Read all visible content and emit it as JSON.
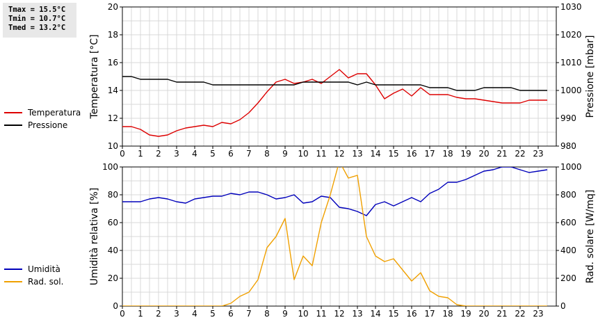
{
  "stats": {
    "tmax": "Tmax = 15.5°C",
    "tmin": "Tmin = 10.7°C",
    "tmed": "Tmed = 13.2°C"
  },
  "colors": {
    "temperatura": "#dd0000",
    "pressione": "#000000",
    "umidita": "#0000bb",
    "radiazione": "#f0a000"
  },
  "chart_data": [
    {
      "type": "line",
      "xlim": [
        0,
        24
      ],
      "xticks": [
        "0",
        "1",
        "2",
        "3",
        "4",
        "5",
        "6",
        "7",
        "8",
        "9",
        "10",
        "11",
        "12",
        "13",
        "14",
        "15",
        "16",
        "17",
        "18",
        "19",
        "20",
        "21",
        "22",
        "23"
      ],
      "ylabel_left": "Temperatura [°C]",
      "ylabel_right": "Pressione [mbar]",
      "ylim_left": [
        10,
        20
      ],
      "yticks_left": [
        "10",
        "12",
        "14",
        "16",
        "18",
        "20"
      ],
      "ylim_right": [
        980,
        1030
      ],
      "yticks_right": [
        "980",
        "990",
        "1000",
        "1010",
        "1020",
        "1030"
      ],
      "grid": true,
      "legend_placement": "left",
      "series": [
        {
          "name": "Temperatura",
          "axis": "left",
          "x": [
            0,
            0.5,
            1,
            1.5,
            2,
            2.5,
            3,
            3.5,
            4,
            4.5,
            5,
            5.5,
            6,
            6.5,
            7,
            7.5,
            8,
            8.5,
            9,
            9.5,
            10,
            10.5,
            11,
            11.5,
            12,
            12.5,
            13,
            13.5,
            14,
            14.5,
            15,
            15.5,
            16,
            16.5,
            17,
            17.5,
            18,
            18.5,
            19,
            19.5,
            20,
            20.5,
            21,
            21.5,
            22,
            22.5,
            23,
            23.5
          ],
          "y": [
            11.4,
            11.4,
            11.2,
            10.8,
            10.7,
            10.8,
            11.1,
            11.3,
            11.4,
            11.5,
            11.4,
            11.7,
            11.6,
            11.9,
            12.4,
            13.1,
            13.9,
            14.6,
            14.8,
            14.5,
            14.6,
            14.8,
            14.5,
            15.0,
            15.5,
            14.9,
            15.2,
            15.2,
            14.4,
            13.4,
            13.8,
            14.1,
            13.6,
            14.2,
            13.7,
            13.7,
            13.7,
            13.5,
            13.4,
            13.4,
            13.3,
            13.2,
            13.1,
            13.1,
            13.1,
            13.3,
            13.3,
            13.3
          ]
        },
        {
          "name": "Pressione",
          "axis": "right",
          "x": [
            0,
            0.5,
            1,
            1.5,
            2,
            2.5,
            3,
            3.5,
            4,
            4.5,
            5,
            5.5,
            6,
            6.5,
            7,
            7.5,
            8,
            8.5,
            9,
            9.5,
            10,
            10.5,
            11,
            11.5,
            12,
            12.5,
            13,
            13.5,
            14,
            14.5,
            15,
            15.5,
            16,
            16.5,
            17,
            17.5,
            18,
            18.5,
            19,
            19.5,
            20,
            20.5,
            21,
            21.5,
            22,
            22.5,
            23,
            23.5
          ],
          "y": [
            1005,
            1005,
            1004,
            1004,
            1004,
            1004,
            1003,
            1003,
            1003,
            1003,
            1002,
            1002,
            1002,
            1002,
            1002,
            1002,
            1002,
            1002,
            1002,
            1002,
            1003,
            1003,
            1003,
            1003,
            1003,
            1003,
            1002,
            1003,
            1002,
            1002,
            1002,
            1002,
            1002,
            1002,
            1001,
            1001,
            1001,
            1000,
            1000,
            1000,
            1001,
            1001,
            1001,
            1001,
            1000,
            1000,
            1000,
            1000
          ]
        }
      ]
    },
    {
      "type": "line",
      "xlim": [
        0,
        24
      ],
      "xticks": [
        "0",
        "1",
        "2",
        "3",
        "4",
        "5",
        "6",
        "7",
        "8",
        "9",
        "10",
        "11",
        "12",
        "13",
        "14",
        "15",
        "16",
        "17",
        "18",
        "19",
        "20",
        "21",
        "22",
        "23"
      ],
      "ylabel_left": "Umidità relativa [%]",
      "ylabel_right": "Rad. solare [W/mq]",
      "ylim_left": [
        0,
        100
      ],
      "yticks_left": [
        "0",
        "20",
        "40",
        "60",
        "80",
        "100"
      ],
      "ylim_right": [
        0,
        1000
      ],
      "yticks_right": [
        "0",
        "200",
        "400",
        "600",
        "800",
        "1000"
      ],
      "grid": true,
      "legend_placement": "left",
      "series": [
        {
          "name": "Umidità",
          "axis": "left",
          "x": [
            0,
            0.5,
            1,
            1.5,
            2,
            2.5,
            3,
            3.5,
            4,
            4.5,
            5,
            5.5,
            6,
            6.5,
            7,
            7.5,
            8,
            8.5,
            9,
            9.5,
            10,
            10.5,
            11,
            11.5,
            12,
            12.5,
            13,
            13.5,
            14,
            14.5,
            15,
            15.5,
            16,
            16.5,
            17,
            17.5,
            18,
            18.5,
            19,
            19.5,
            20,
            20.5,
            21,
            21.5,
            22,
            22.5,
            23,
            23.5
          ],
          "y": [
            75,
            75,
            75,
            77,
            78,
            77,
            75,
            74,
            77,
            78,
            79,
            79,
            81,
            80,
            82,
            82,
            80,
            77,
            78,
            80,
            74,
            75,
            79,
            78,
            71,
            70,
            68,
            65,
            73,
            75,
            72,
            75,
            78,
            75,
            81,
            84,
            89,
            89,
            91,
            94,
            97,
            98,
            100,
            100,
            98,
            96,
            97,
            98
          ]
        },
        {
          "name": "Rad. sol.",
          "axis": "right",
          "x": [
            0,
            0.5,
            1,
            1.5,
            2,
            2.5,
            3,
            3.5,
            4,
            4.5,
            5,
            5.5,
            6,
            6.5,
            7,
            7.5,
            8,
            8.5,
            9,
            9.5,
            10,
            10.5,
            11,
            11.5,
            12,
            12.5,
            13,
            13.5,
            14,
            14.5,
            15,
            15.5,
            16,
            16.5,
            17,
            17.5,
            18,
            18.5,
            19,
            19.5,
            20,
            20.5,
            21,
            21.5,
            22,
            22.5,
            23,
            23.5
          ],
          "y": [
            0,
            0,
            0,
            0,
            0,
            0,
            0,
            0,
            0,
            0,
            0,
            0,
            20,
            70,
            100,
            190,
            420,
            500,
            630,
            190,
            360,
            290,
            600,
            800,
            1040,
            920,
            940,
            500,
            360,
            320,
            340,
            260,
            180,
            240,
            110,
            70,
            60,
            10,
            0,
            0,
            0,
            0,
            0,
            0,
            0,
            0,
            0,
            0
          ]
        }
      ]
    }
  ]
}
